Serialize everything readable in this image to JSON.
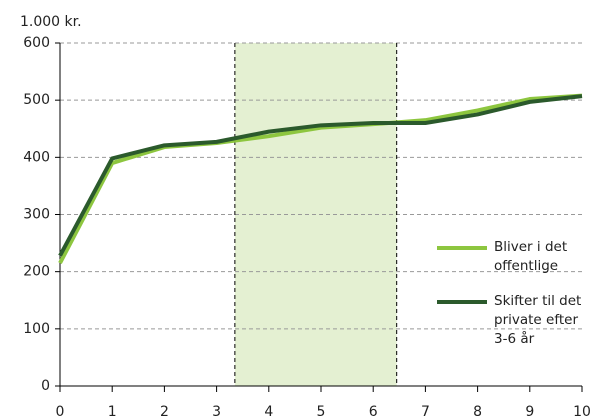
{
  "chart_data": {
    "type": "line",
    "unit_label": "1.000 kr.",
    "x": [
      0,
      1,
      2,
      3,
      4,
      5,
      6,
      7,
      8,
      9,
      10
    ],
    "series": [
      {
        "name": "Bliver i det offentlige",
        "color": "#8dc63f",
        "values": [
          215,
          390,
          418,
          425,
          437,
          452,
          458,
          465,
          482,
          502,
          508
        ]
      },
      {
        "name": "Skifter til det private efter 3-6 år",
        "color": "#2b5a2c",
        "values": [
          228,
          398,
          421,
          427,
          445,
          456,
          460,
          460,
          475,
          497,
          507
        ]
      }
    ],
    "shaded_region": {
      "x": [
        3.35,
        6.45
      ],
      "color": "#e4f0d2"
    },
    "xlim": [
      0,
      10
    ],
    "xticks": [
      0,
      1,
      2,
      3,
      4,
      5,
      6,
      7,
      8,
      9,
      10
    ],
    "ylim": [
      0,
      600
    ],
    "yticks": [
      0,
      100,
      200,
      300,
      400,
      500,
      600
    ],
    "grid": true,
    "legend": "right"
  }
}
